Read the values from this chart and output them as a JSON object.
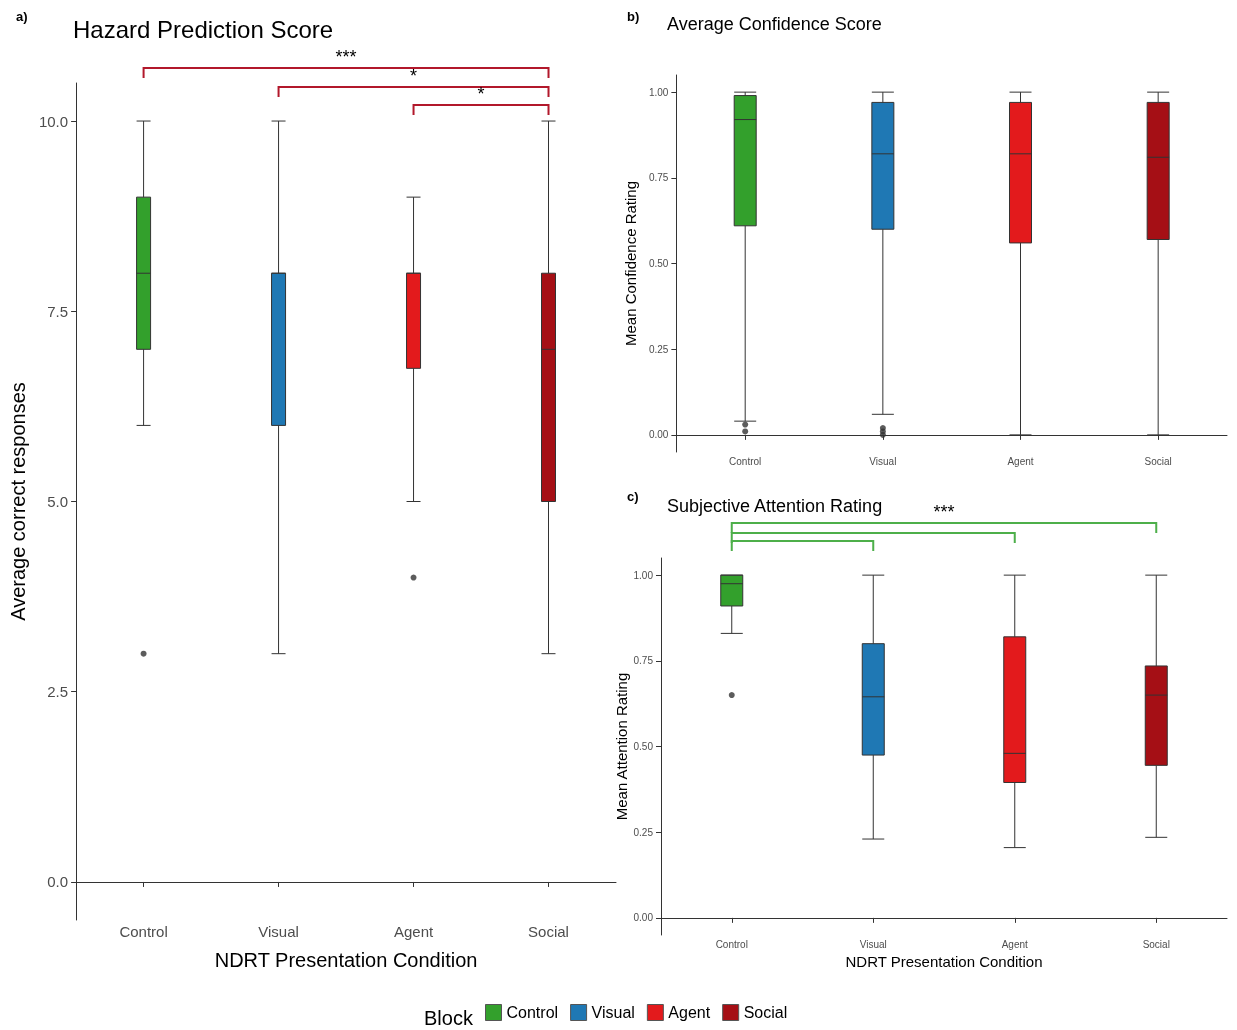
{
  "chart_data": [
    {
      "type": "box",
      "title": "Hazard Prediction Score",
      "xlabel": "NDRT Presentation Condition",
      "ylabel": "Average correct responses",
      "annotations": [
        "a)",
        "***",
        "*",
        "*"
      ],
      "categories": [
        "Control",
        "Visual",
        "Agent",
        "Social"
      ],
      "series": [
        {
          "color": "#33a02c",
          "boxes": [
            {
              "low": 6,
              "q1": 7,
              "median": 8,
              "q3": 9,
              "high": 10,
              "outliers": [
                3
              ]
            },
            null,
            null,
            null
          ]
        },
        {
          "color": "#1f78b4",
          "boxes": [
            null,
            {
              "low": 3,
              "q1": 6,
              "median": 8,
              "q3": 8,
              "high": 10
            },
            null,
            null
          ]
        },
        {
          "color": "#e31a1c",
          "boxes": [
            null,
            null,
            {
              "low": 5,
              "q1": 6.75,
              "median": 8,
              "q3": 8,
              "high": 9,
              "outliers": [
                4
              ]
            },
            null
          ]
        },
        {
          "color": "#a50f15",
          "boxes": [
            null,
            null,
            null,
            {
              "low": 3,
              "q1": 5,
              "median": 7,
              "q3": 8,
              "high": 10
            }
          ]
        }
      ],
      "ylim": [
        -0.5,
        10.5
      ],
      "yticks": [
        {
          "value": 0,
          "label": "0.0"
        },
        {
          "value": 2.5,
          "label": "2.5"
        },
        {
          "value": 5,
          "label": "5.0"
        },
        {
          "value": 7.5,
          "label": "7.5"
        },
        {
          "value": 10,
          "label": "10.0"
        }
      ]
    },
    {
      "type": "box",
      "title": "Average Confidence Score",
      "ylabel": "Mean Confidence Rating",
      "annotations": [
        "b)"
      ],
      "categories": [
        "Control",
        "Visual",
        "Agent",
        "Social"
      ],
      "series": [
        {
          "color": "#33a02c",
          "boxes": [
            {
              "low": 0.04,
              "q1": 0.61,
              "median": 0.92,
              "q3": 0.99,
              "high": 1.0,
              "outliers": [
                0.03,
                0.01
              ]
            },
            null,
            null,
            null
          ]
        },
        {
          "color": "#1f78b4",
          "boxes": [
            null,
            {
              "low": 0.06,
              "q1": 0.6,
              "median": 0.82,
              "q3": 0.97,
              "high": 1.0,
              "outliers": [
                0.02,
                0.01,
                0.0
              ]
            },
            null,
            null
          ]
        },
        {
          "color": "#e31a1c",
          "boxes": [
            null,
            null,
            {
              "low": 0.0,
              "q1": 0.56,
              "median": 0.82,
              "q3": 0.97,
              "high": 1.0
            },
            null
          ]
        },
        {
          "color": "#a50f15",
          "boxes": [
            null,
            null,
            null,
            {
              "low": 0.0,
              "q1": 0.57,
              "median": 0.81,
              "q3": 0.97,
              "high": 1.0
            }
          ]
        }
      ],
      "ylim": [
        -0.05,
        1.05
      ],
      "yticks": [
        {
          "value": 0,
          "label": "0.00"
        },
        {
          "value": 0.25,
          "label": "0.25"
        },
        {
          "value": 0.5,
          "label": "0.50"
        },
        {
          "value": 0.75,
          "label": "0.75"
        },
        {
          "value": 1,
          "label": "1.00"
        }
      ]
    },
    {
      "type": "box",
      "title": "Subjective Attention Rating",
      "xlabel": "NDRT Presentation Condition",
      "ylabel": "Mean Attention Rating",
      "annotations": [
        "c)",
        "***"
      ],
      "categories": [
        "Control",
        "Visual",
        "Agent",
        "Social"
      ],
      "series": [
        {
          "name": "Control",
          "color": "#33a02c",
          "boxes": [
            {
              "low": 0.83,
              "q1": 0.91,
              "median": 0.975,
              "q3": 1.0,
              "high": 1.0,
              "outliers": [
                0.65
              ]
            },
            null,
            null,
            null
          ]
        },
        {
          "name": "Visual",
          "color": "#1f78b4",
          "boxes": [
            null,
            {
              "low": 0.23,
              "q1": 0.475,
              "median": 0.645,
              "q3": 0.8,
              "high": 1.0
            },
            null,
            null
          ]
        },
        {
          "name": "Agent",
          "color": "#e31a1c",
          "boxes": [
            null,
            null,
            {
              "low": 0.205,
              "q1": 0.395,
              "median": 0.48,
              "q3": 0.82,
              "high": 1.0
            },
            null
          ]
        },
        {
          "name": "Social",
          "color": "#a50f15",
          "boxes": [
            null,
            null,
            null,
            {
              "low": 0.235,
              "q1": 0.445,
              "median": 0.65,
              "q3": 0.735,
              "high": 1.0
            }
          ]
        }
      ],
      "ylim": [
        -0.05,
        1.05
      ],
      "yticks": [
        {
          "value": 0,
          "label": "0.00"
        },
        {
          "value": 0.25,
          "label": "0.25"
        },
        {
          "value": 0.5,
          "label": "0.50"
        },
        {
          "value": 0.75,
          "label": "0.75"
        },
        {
          "value": 1,
          "label": "1.00"
        }
      ],
      "legend": "bottom",
      "legend_title": "Block"
    }
  ]
}
